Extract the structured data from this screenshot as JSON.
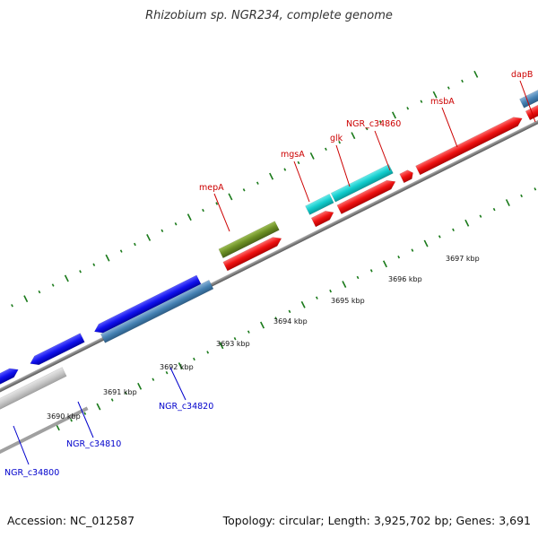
{
  "title": "Rhizobium sp. NGR234, complete genome",
  "footer": {
    "accession": "Accession: NC_012587",
    "summary": "Topology: circular; Length: 3,925,702 bp; Genes: 3,691"
  },
  "colors": {
    "red": "#ee1111",
    "blue": "#1111ee",
    "cyan": "#11cccc",
    "steelblue": "#4682b4",
    "olive": "#6b8e23",
    "grey": "#c8c8c8",
    "tick": "#1a7a1a",
    "label_top": "#cc0000",
    "label_bottom": "#0000cc"
  },
  "ticks": [
    {
      "label": "3690 kbp"
    },
    {
      "label": "3691 kbp"
    },
    {
      "label": "3692 kbp"
    },
    {
      "label": "3693 kbp"
    },
    {
      "label": "3694 kbp"
    },
    {
      "label": "3695 kbp"
    },
    {
      "label": "3696 kbp"
    },
    {
      "label": "3697 kbp"
    }
  ],
  "gene_labels": [
    {
      "name": "mepA",
      "strand": "top"
    },
    {
      "name": "mgsA",
      "strand": "top"
    },
    {
      "name": "glk",
      "strand": "top"
    },
    {
      "name": "NGR_c34860",
      "strand": "top"
    },
    {
      "name": "msbA",
      "strand": "top"
    },
    {
      "name": "dapB",
      "strand": "top"
    },
    {
      "name": "NGR_c34820",
      "strand": "bottom"
    },
    {
      "name": "NGR_c34810",
      "strand": "bottom"
    },
    {
      "name": "NGR_c34800",
      "strand": "bottom"
    }
  ]
}
